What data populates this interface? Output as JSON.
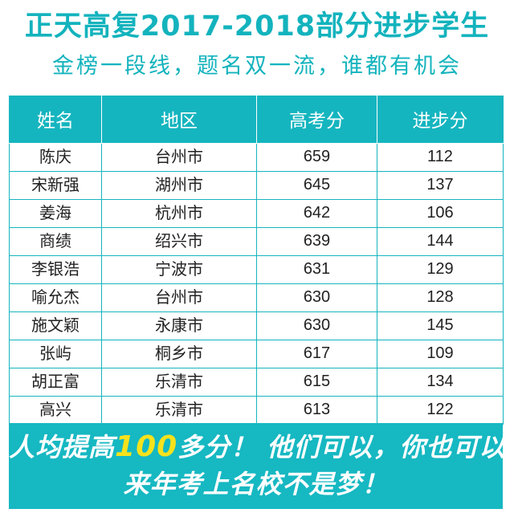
{
  "header": {
    "title": "正天高复2017-2018部分进步学生",
    "subtitle": "金榜一段线，题名双一流，谁都有机会"
  },
  "table": {
    "columns": [
      "姓名",
      "地区",
      "高考分",
      "进步分"
    ],
    "rows": [
      [
        "陈庆",
        "台州市",
        "659",
        "112"
      ],
      [
        "宋新强",
        "湖州市",
        "645",
        "137"
      ],
      [
        "姜海",
        "杭州市",
        "642",
        "106"
      ],
      [
        "商绩",
        "绍兴市",
        "639",
        "144"
      ],
      [
        "李银浩",
        "宁波市",
        "631",
        "129"
      ],
      [
        "喻允杰",
        "台州市",
        "630",
        "128"
      ],
      [
        "施文颖",
        "永康市",
        "630",
        "145"
      ],
      [
        "张屿",
        "桐乡市",
        "617",
        "109"
      ],
      [
        "胡正富",
        "乐清市",
        "615",
        "134"
      ],
      [
        "高兴",
        "乐清市",
        "613",
        "122"
      ]
    ]
  },
  "banner": {
    "line1_prefix": "人均提高",
    "line1_highlight": "100",
    "line1_suffix": "多分！ 他们可以，你也可以！",
    "line2": "来年考上名校不是梦！"
  },
  "colors": {
    "accent": "#15b5bf",
    "highlight": "#f7e21c"
  }
}
